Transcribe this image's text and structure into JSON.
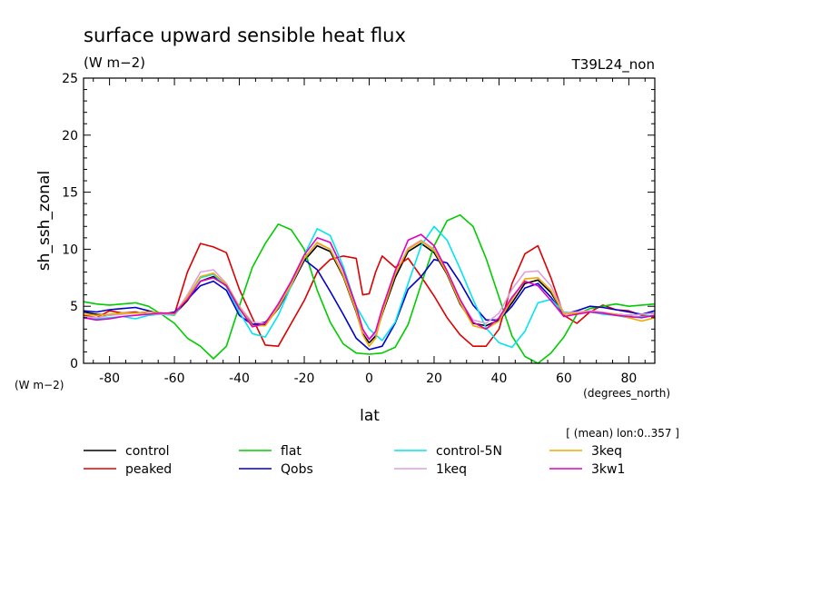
{
  "chart_data": {
    "type": "line",
    "title": "surface upward sensible heat flux",
    "subtitle": "(W m−2)",
    "run_label": "T39L24_non",
    "xlabel": "lat",
    "xunit": "(degrees_north)",
    "ylabel": "sh_ssh_zonal",
    "yunit": "(W m−2)",
    "averaging_note": "[ (mean) lon:0..357 ]",
    "xlim": [
      -88,
      88
    ],
    "ylim": [
      0,
      25
    ],
    "xticks": [
      -80,
      -60,
      -40,
      -20,
      0,
      20,
      40,
      60,
      80
    ],
    "yticks": [
      0,
      5,
      10,
      15,
      20,
      25
    ],
    "grid": false,
    "legend_position": "bottom",
    "series": [
      {
        "name": "control",
        "color": "#000000",
        "x": [
          -88,
          -84,
          -80,
          -76,
          -72,
          -68,
          -64,
          -60,
          -56,
          -52,
          -48,
          -44,
          -40,
          -36,
          -32,
          -28,
          -24,
          -20,
          -16,
          -12,
          -8,
          -4,
          -2,
          0,
          2,
          4,
          8,
          12,
          16,
          20,
          24,
          28,
          32,
          36,
          40,
          44,
          48,
          52,
          56,
          60,
          64,
          68,
          72,
          76,
          80,
          84,
          88
        ],
        "y": [
          4.5,
          4.3,
          4.2,
          4.4,
          4.4,
          4.5,
          4.4,
          4.3,
          5.5,
          7.2,
          7.6,
          6.8,
          5.0,
          3.4,
          3.4,
          4.8,
          6.8,
          9.0,
          10.3,
          9.8,
          7.6,
          4.5,
          2.6,
          1.8,
          2.4,
          4.3,
          7.5,
          9.8,
          10.5,
          9.7,
          7.8,
          5.2,
          3.5,
          3.3,
          3.8,
          5.3,
          7.0,
          7.3,
          6.2,
          4.3,
          4.4,
          4.5,
          4.4,
          4.3,
          4.2,
          4.3,
          4.4
        ]
      },
      {
        "name": "peaked",
        "color": "#dd0000",
        "x": [
          -88,
          -84,
          -80,
          -76,
          -72,
          -68,
          -64,
          -60,
          -56,
          -52,
          -48,
          -44,
          -40,
          -36,
          -32,
          -28,
          -24,
          -20,
          -16,
          -12,
          -8,
          -4,
          -2,
          0,
          2,
          4,
          8,
          12,
          16,
          20,
          24,
          28,
          32,
          36,
          40,
          44,
          48,
          52,
          56,
          60,
          64,
          68,
          72,
          76,
          80,
          84,
          88
        ],
        "y": [
          4.2,
          4.0,
          4.6,
          4.4,
          4.5,
          4.3,
          4.4,
          4.3,
          8.0,
          10.5,
          10.2,
          9.7,
          6.5,
          4.0,
          1.6,
          1.5,
          3.5,
          5.5,
          8.0,
          9.1,
          9.4,
          9.2,
          6.0,
          6.1,
          8.0,
          9.4,
          8.4,
          9.2,
          7.6,
          5.9,
          4.0,
          2.5,
          1.5,
          1.5,
          3.0,
          7.0,
          9.6,
          10.3,
          7.5,
          4.2,
          3.5,
          4.5,
          5.1,
          4.7,
          4.6,
          4.2,
          4.1
        ]
      },
      {
        "name": "flat",
        "color": "#00cc00",
        "x": [
          -88,
          -84,
          -80,
          -76,
          -72,
          -68,
          -64,
          -60,
          -56,
          -52,
          -48,
          -44,
          -40,
          -36,
          -32,
          -28,
          -24,
          -20,
          -16,
          -12,
          -8,
          -4,
          0,
          4,
          8,
          12,
          16,
          20,
          24,
          28,
          32,
          36,
          40,
          44,
          48,
          52,
          56,
          60,
          64,
          68,
          72,
          76,
          80,
          84,
          88
        ],
        "y": [
          5.4,
          5.2,
          5.1,
          5.2,
          5.3,
          5.0,
          4.3,
          3.5,
          2.2,
          1.5,
          0.4,
          1.5,
          5.0,
          8.4,
          10.5,
          12.2,
          11.7,
          10.0,
          6.4,
          3.6,
          1.7,
          0.9,
          0.8,
          0.9,
          1.4,
          3.4,
          6.9,
          10.3,
          12.5,
          13.0,
          12.0,
          9.2,
          5.8,
          2.4,
          0.6,
          0.0,
          0.9,
          2.3,
          4.3,
          4.8,
          5.0,
          5.2,
          5.0,
          5.1,
          5.2
        ]
      },
      {
        "name": "Qobs",
        "color": "#0000cc",
        "x": [
          -88,
          -84,
          -80,
          -76,
          -72,
          -68,
          -64,
          -60,
          -56,
          -52,
          -48,
          -44,
          -40,
          -36,
          -32,
          -28,
          -24,
          -20,
          -16,
          -12,
          -8,
          -4,
          0,
          4,
          8,
          12,
          16,
          20,
          24,
          28,
          32,
          36,
          40,
          44,
          48,
          52,
          56,
          60,
          64,
          68,
          72,
          76,
          80,
          84,
          88
        ],
        "y": [
          4.6,
          4.5,
          4.7,
          4.8,
          4.9,
          4.6,
          4.3,
          4.5,
          5.6,
          6.8,
          7.2,
          6.4,
          4.2,
          3.4,
          3.6,
          4.8,
          6.8,
          9.1,
          8.2,
          6.3,
          4.3,
          2.2,
          1.2,
          1.5,
          3.5,
          6.5,
          7.6,
          9.1,
          8.8,
          7.1,
          5.1,
          3.8,
          3.8,
          5.0,
          6.6,
          7.0,
          5.8,
          4.3,
          4.6,
          5.0,
          4.9,
          4.7,
          4.5,
          4.3,
          4.6
        ]
      },
      {
        "name": "control-5N",
        "color": "#00e5ee",
        "x": [
          -88,
          -84,
          -80,
          -76,
          -72,
          -68,
          -64,
          -60,
          -56,
          -52,
          -48,
          -44,
          -40,
          -36,
          -32,
          -28,
          -24,
          -20,
          -16,
          -12,
          -8,
          -4,
          0,
          4,
          8,
          12,
          16,
          20,
          24,
          28,
          32,
          36,
          40,
          44,
          48,
          52,
          56,
          60,
          64,
          68,
          72,
          76,
          80,
          84,
          88
        ],
        "y": [
          4.0,
          3.9,
          4.0,
          4.1,
          3.9,
          4.2,
          4.3,
          4.2,
          5.8,
          7.5,
          7.8,
          6.7,
          4.5,
          2.6,
          2.3,
          4.2,
          6.8,
          9.5,
          11.8,
          11.2,
          8.5,
          5.0,
          3.0,
          2.0,
          3.6,
          7.0,
          10.3,
          12.0,
          10.8,
          8.3,
          5.6,
          3.1,
          1.8,
          1.4,
          2.8,
          5.3,
          5.6,
          4.5,
          4.4,
          4.5,
          4.3,
          4.2,
          4.0,
          4.1,
          4.2
        ]
      },
      {
        "name": "1keq",
        "color": "#dda0dd",
        "x": [
          -88,
          -84,
          -80,
          -76,
          -72,
          -68,
          -64,
          -60,
          -56,
          -52,
          -48,
          -44,
          -40,
          -36,
          -32,
          -28,
          -24,
          -20,
          -16,
          -12,
          -8,
          -4,
          -2,
          0,
          2,
          4,
          8,
          12,
          16,
          20,
          24,
          28,
          32,
          36,
          40,
          44,
          48,
          52,
          56,
          60,
          64,
          68,
          72,
          76,
          80,
          84,
          88
        ],
        "y": [
          4.1,
          4.0,
          4.2,
          4.3,
          4.4,
          4.3,
          4.3,
          4.3,
          6.0,
          8.0,
          8.2,
          7.0,
          5.0,
          3.6,
          3.5,
          5.0,
          7.0,
          9.2,
          10.5,
          10.0,
          7.8,
          4.8,
          2.8,
          2.1,
          2.6,
          4.6,
          7.8,
          10.1,
          10.8,
          10.0,
          8.0,
          5.5,
          3.8,
          3.5,
          4.4,
          6.5,
          8.0,
          8.1,
          6.8,
          4.4,
          4.5,
          4.6,
          4.5,
          4.3,
          4.2,
          4.3,
          4.4
        ]
      },
      {
        "name": "3keq",
        "color": "#eeaa00",
        "x": [
          -88,
          -84,
          -80,
          -76,
          -72,
          -68,
          -64,
          -60,
          -56,
          -52,
          -48,
          -44,
          -40,
          -36,
          -32,
          -28,
          -24,
          -20,
          -16,
          -12,
          -8,
          -4,
          -2,
          0,
          2,
          4,
          8,
          12,
          16,
          20,
          24,
          28,
          32,
          36,
          40,
          44,
          48,
          52,
          56,
          60,
          64,
          68,
          72,
          76,
          80,
          84,
          88
        ],
        "y": [
          4.3,
          4.2,
          4.3,
          4.4,
          4.4,
          4.5,
          4.4,
          4.3,
          5.8,
          7.6,
          7.9,
          6.9,
          4.9,
          3.3,
          3.3,
          4.9,
          6.9,
          9.2,
          10.6,
          10.0,
          7.7,
          4.6,
          2.5,
          1.5,
          2.2,
          4.4,
          7.8,
          10.0,
          10.7,
          9.9,
          7.9,
          5.3,
          3.3,
          3.0,
          3.7,
          5.6,
          7.4,
          7.5,
          6.4,
          4.3,
          4.4,
          4.5,
          4.4,
          4.3,
          4.0,
          3.7,
          4.0
        ]
      },
      {
        "name": "3kw1",
        "color": "#e000c0",
        "x": [
          -88,
          -84,
          -80,
          -76,
          -72,
          -68,
          -64,
          -60,
          -56,
          -52,
          -48,
          -44,
          -40,
          -36,
          -32,
          -28,
          -24,
          -20,
          -16,
          -12,
          -8,
          -4,
          -2,
          0,
          2,
          4,
          8,
          12,
          16,
          20,
          24,
          28,
          32,
          36,
          40,
          44,
          48,
          52,
          56,
          60,
          64,
          68,
          72,
          76,
          80,
          84,
          88
        ],
        "y": [
          4.0,
          3.8,
          3.9,
          4.1,
          4.2,
          4.3,
          4.4,
          4.4,
          5.6,
          7.2,
          7.5,
          6.8,
          4.8,
          3.2,
          3.5,
          5.2,
          7.2,
          9.5,
          11.0,
          10.6,
          8.2,
          5.0,
          3.0,
          2.1,
          2.8,
          4.8,
          8.1,
          10.8,
          11.3,
          10.3,
          8.1,
          5.6,
          3.6,
          3.0,
          4.0,
          5.8,
          7.2,
          6.8,
          5.5,
          4.1,
          4.3,
          4.5,
          4.4,
          4.2,
          4.1,
          4.0,
          4.2
        ]
      }
    ]
  }
}
